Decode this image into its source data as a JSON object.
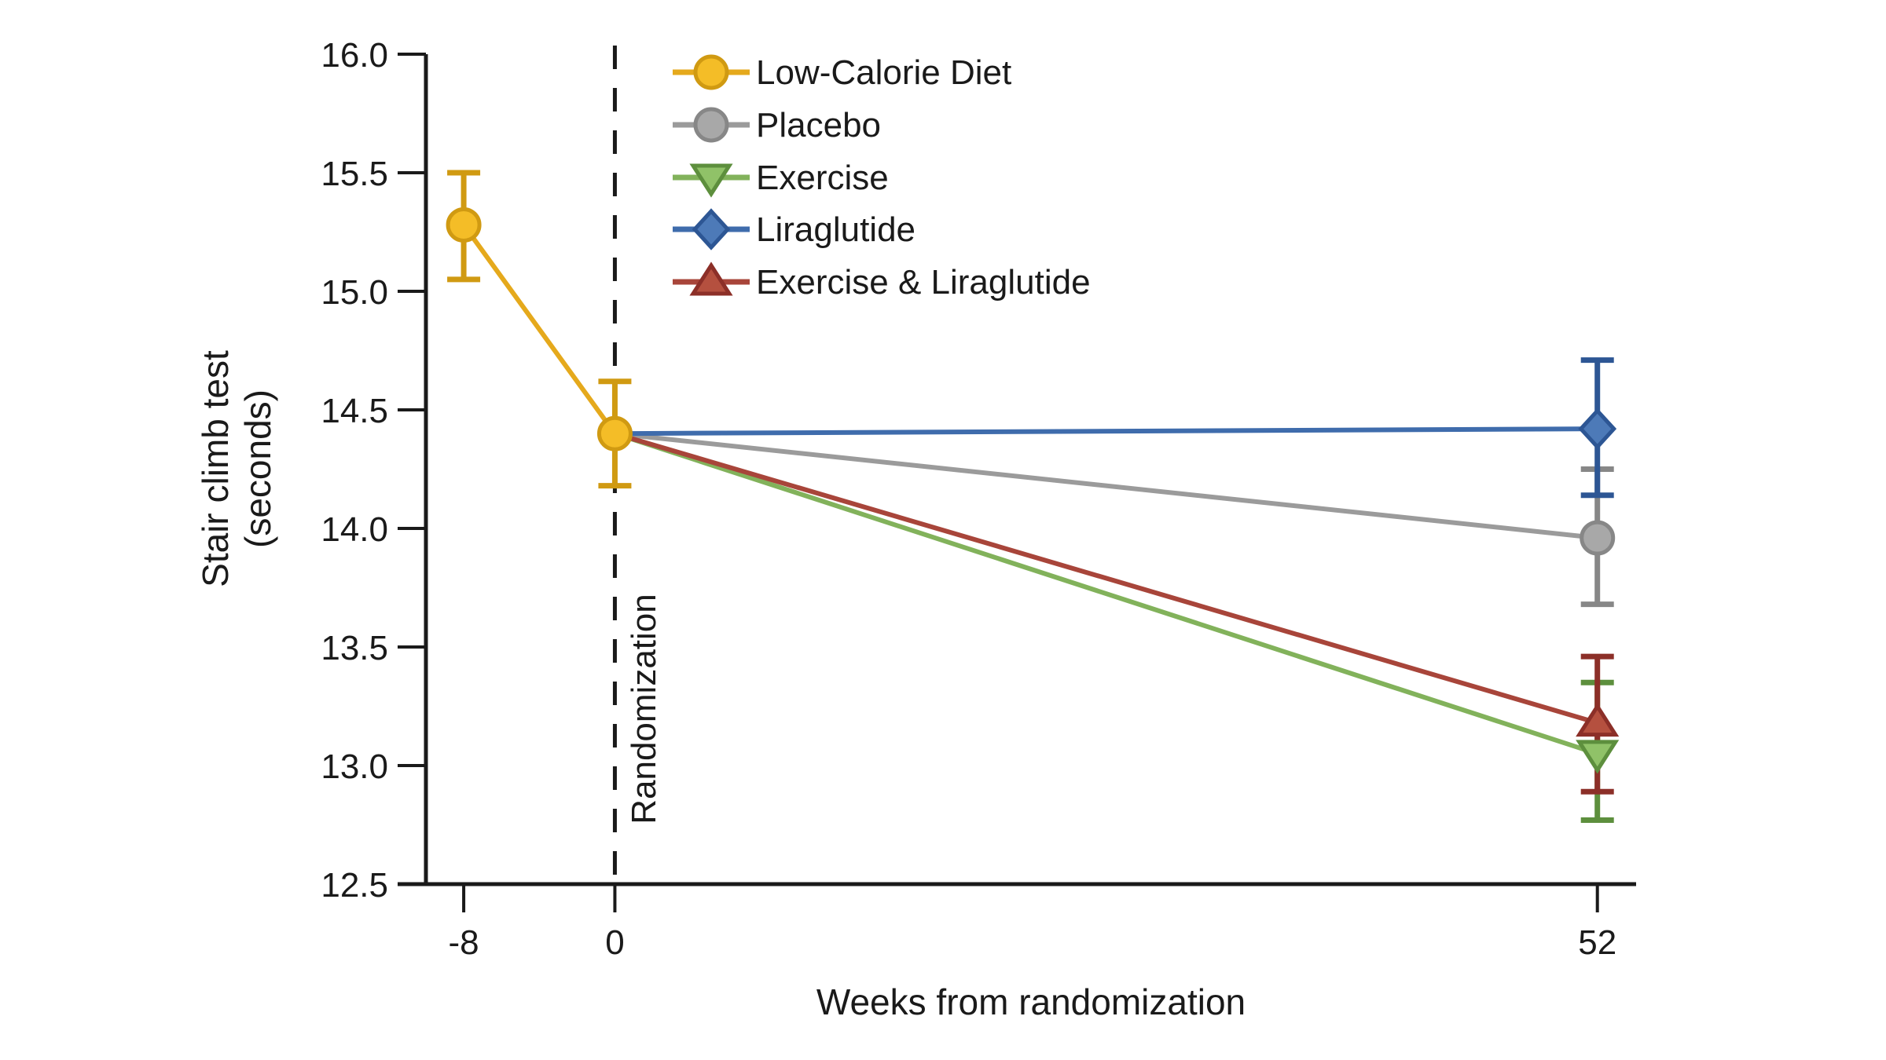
{
  "figure": {
    "background": "#ffffff",
    "axis_color": "#1a1a1a",
    "text_color": "#1a1a1a"
  },
  "chart_data": {
    "type": "line",
    "title": "",
    "xlabel": "Weeks from randomization",
    "ylabel_line1": "Stair climb test",
    "ylabel_line2": "(seconds)",
    "xlim": [
      -10.0,
      54.05
    ],
    "ylim": [
      12.5,
      16.0
    ],
    "grid": false,
    "legend_position": "top-left-inside",
    "annotation": {
      "text": "Randomization",
      "x": 0,
      "style": "dashed-vertical-line"
    },
    "x_ticks": [
      {
        "v": -8,
        "label": "-8"
      },
      {
        "v": 0,
        "label": "0"
      },
      {
        "v": 52,
        "label": "52"
      }
    ],
    "y_ticks": [
      {
        "v": 16.0,
        "label": "16.0"
      },
      {
        "v": 15.5,
        "label": "15.5"
      },
      {
        "v": 15.0,
        "label": "15.0"
      },
      {
        "v": 14.5,
        "label": "14.5"
      },
      {
        "v": 14.0,
        "label": "14.0"
      },
      {
        "v": 13.5,
        "label": "13.5"
      },
      {
        "v": 13.0,
        "label": "13.0"
      },
      {
        "v": 12.5,
        "label": "12.5"
      }
    ],
    "series": [
      {
        "name": "Low-Calorie Diet",
        "marker": "circle",
        "line_color": "#E5A91C",
        "fill_color": "#F4BD27",
        "edge_color": "#D09A12",
        "points": [
          {
            "x": -8,
            "y": 15.28,
            "ci": [
              15.05,
              15.5
            ],
            "show_marker": true
          },
          {
            "x": 0,
            "y": 14.4,
            "ci": [
              14.18,
              14.62
            ],
            "show_marker": true
          }
        ]
      },
      {
        "name": "Placebo",
        "marker": "circle",
        "line_color": "#9B9B9B",
        "fill_color": "#A8A8A8",
        "edge_color": "#878787",
        "points": [
          {
            "x": 0,
            "y": 14.4,
            "ci": null,
            "show_marker": false
          },
          {
            "x": 52,
            "y": 13.96,
            "ci": [
              13.68,
              14.25
            ],
            "show_marker": true
          }
        ]
      },
      {
        "name": "Exercise",
        "marker": "triangle-down",
        "line_color": "#82B25B",
        "fill_color": "#90C268",
        "edge_color": "#5D8F3D",
        "points": [
          {
            "x": 0,
            "y": 14.4,
            "ci": null,
            "show_marker": false
          },
          {
            "x": 52,
            "y": 13.05,
            "ci": [
              12.77,
              13.35
            ],
            "show_marker": true
          }
        ]
      },
      {
        "name": "Liraglutide",
        "marker": "diamond",
        "line_color": "#3F6CAC",
        "fill_color": "#4D7AB8",
        "edge_color": "#2D5694",
        "points": [
          {
            "x": 0,
            "y": 14.4,
            "ci": null,
            "show_marker": false
          },
          {
            "x": 52,
            "y": 14.42,
            "ci": [
              14.14,
              14.71
            ],
            "show_marker": true
          }
        ]
      },
      {
        "name": "Exercise & Liraglutide",
        "marker": "triangle-up",
        "line_color": "#A8453A",
        "fill_color": "#B5503F",
        "edge_color": "#8C2F28",
        "points": [
          {
            "x": 0,
            "y": 14.4,
            "ci": null,
            "show_marker": false
          },
          {
            "x": 52,
            "y": 13.18,
            "ci": [
              12.89,
              13.46
            ],
            "show_marker": true
          }
        ]
      }
    ]
  }
}
